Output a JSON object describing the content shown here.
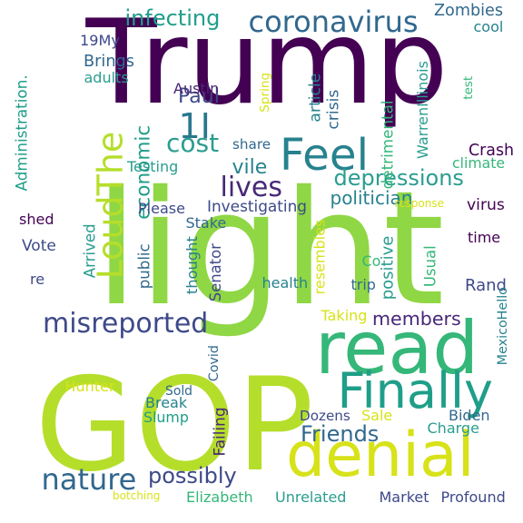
{
  "colors": {
    "background": "#ffffff",
    "deep_purple": "#440154",
    "indigo": "#482878",
    "blue": "#3e4989",
    "slate_blue": "#31688e",
    "teal_blue": "#26828e",
    "teal": "#1f9e89",
    "sea_green": "#35b779",
    "green": "#6ece58",
    "lime": "#8fd744",
    "yellow_green": "#b5de2b",
    "yellow": "#fde725"
  },
  "words": [
    {
      "id": "trump",
      "text": "Trump",
      "color": "#440154"
    },
    {
      "id": "light",
      "text": "light",
      "color": "#8fd744"
    },
    {
      "id": "gop",
      "text": "GOP",
      "color": "#b5de2b"
    },
    {
      "id": "read",
      "text": "read",
      "color": "#35b779"
    },
    {
      "id": "denial",
      "text": "denial",
      "color": "#d7e219"
    },
    {
      "id": "finally",
      "text": "Finally",
      "color": "#1f9e89"
    },
    {
      "id": "feel",
      "text": "Feel",
      "color": "#26828e"
    },
    {
      "id": "coronavirus",
      "text": "coronavirus",
      "color": "#31688e"
    },
    {
      "id": "loudthe",
      "text": "LoudThe",
      "color": "#b5de2b"
    },
    {
      "id": "1i",
      "text": "1I",
      "color": "#2a788e"
    },
    {
      "id": "misreported",
      "text": "misreported",
      "color": "#3e4989"
    },
    {
      "id": "nature",
      "text": "nature",
      "color": "#31688e"
    },
    {
      "id": "economic",
      "text": "economic",
      "color": "#1f9e89"
    },
    {
      "id": "cost",
      "text": "cost",
      "color": "#2a9d8f"
    },
    {
      "id": "lives",
      "text": "lives",
      "color": "#482878"
    },
    {
      "id": "infecting",
      "text": "infecting",
      "color": "#1f9e89"
    },
    {
      "id": "depressions",
      "text": "depressions",
      "color": "#2a9d8f"
    },
    {
      "id": "possibly",
      "text": "possibly",
      "color": "#3e4989"
    },
    {
      "id": "friends",
      "text": "Friends",
      "color": "#31688e"
    },
    {
      "id": "members",
      "text": "members",
      "color": "#482878"
    },
    {
      "id": "paul",
      "text": "Paul",
      "color": "#3e4989"
    },
    {
      "id": "vile",
      "text": "vile",
      "color": "#26828e"
    },
    {
      "id": "politician",
      "text": "politician",
      "color": "#26828e"
    },
    {
      "id": "rand",
      "text": "Rand",
      "color": "#3e4989"
    },
    {
      "id": "zombies",
      "text": "Zombies",
      "color": "#31688e"
    },
    {
      "id": "cool",
      "text": "cool",
      "color": "#26828e"
    },
    {
      "id": "19my",
      "text": "19My",
      "color": "#3e4989"
    },
    {
      "id": "brings",
      "text": "Brings",
      "color": "#31688e"
    },
    {
      "id": "adults",
      "text": "adults",
      "color": "#2a9d8f"
    },
    {
      "id": "austin",
      "text": "Austin",
      "color": "#482878"
    },
    {
      "id": "spring",
      "text": "Spring",
      "color": "#d7e219"
    },
    {
      "id": "article",
      "text": "article",
      "color": "#26828e"
    },
    {
      "id": "crisis",
      "text": "crisis",
      "color": "#31688e"
    },
    {
      "id": "warrenillinois",
      "text": "WarrenIllinois",
      "color": "#2a9d8f"
    },
    {
      "id": "detrimental",
      "text": "detrimental",
      "color": "#35b779"
    },
    {
      "id": "test",
      "text": "test",
      "color": "#35b779"
    },
    {
      "id": "crash",
      "text": "Crash",
      "color": "#440154"
    },
    {
      "id": "climate",
      "text": "climate",
      "color": "#35b779"
    },
    {
      "id": "share",
      "text": "share",
      "color": "#31688e"
    },
    {
      "id": "testing",
      "text": "Testing",
      "color": "#2a9d8f"
    },
    {
      "id": "administration",
      "text": "Administration.",
      "color": "#1f9e89"
    },
    {
      "id": "investigating",
      "text": "Investigating",
      "color": "#3e4989"
    },
    {
      "id": "please",
      "text": "Please",
      "color": "#3e4989"
    },
    {
      "id": "stake",
      "text": "Stake",
      "color": "#31688e"
    },
    {
      "id": "response",
      "text": "response",
      "color": "#d7e219"
    },
    {
      "id": "virus",
      "text": "virus",
      "color": "#440154"
    },
    {
      "id": "shed",
      "text": "shed",
      "color": "#440154"
    },
    {
      "id": "vote",
      "text": "Vote",
      "color": "#3e4989"
    },
    {
      "id": "arrived",
      "text": "Arrived",
      "color": "#2a9d8f"
    },
    {
      "id": "public",
      "text": "public",
      "color": "#31688e"
    },
    {
      "id": "thought",
      "text": "thought",
      "color": "#26828e"
    },
    {
      "id": "senator",
      "text": "Senator",
      "color": "#3e4989"
    },
    {
      "id": "resembles",
      "text": "resembles",
      "color": "#d7e219"
    },
    {
      "id": "positive",
      "text": "positive",
      "color": "#2a9d8f"
    },
    {
      "id": "usual",
      "text": "Usual",
      "color": "#35b779"
    },
    {
      "id": "time",
      "text": "time",
      "color": "#440154"
    },
    {
      "id": "co",
      "text": "Co",
      "color": "#35b779"
    },
    {
      "id": "trip",
      "text": "trip",
      "color": "#31688e"
    },
    {
      "id": "health",
      "text": "health",
      "color": "#26828e"
    },
    {
      "id": "re",
      "text": "re",
      "color": "#3e4989"
    },
    {
      "id": "taking",
      "text": "Taking",
      "color": "#d7e219"
    },
    {
      "id": "mexicohello",
      "text": "MexicoHello",
      "color": "#26828e"
    },
    {
      "id": "hunter",
      "text": "Hunter",
      "color": "#d7e219"
    },
    {
      "id": "sold",
      "text": "Sold",
      "color": "#31688e"
    },
    {
      "id": "break",
      "text": "Break",
      "color": "#26828e"
    },
    {
      "id": "slump",
      "text": "Slump",
      "color": "#1f9e89"
    },
    {
      "id": "covid",
      "text": "Covid",
      "color": "#31688e"
    },
    {
      "id": "failing",
      "text": "Failing",
      "color": "#482878"
    },
    {
      "id": "dozens",
      "text": "Dozens",
      "color": "#3e4989"
    },
    {
      "id": "sale",
      "text": "Sale",
      "color": "#d7e219"
    },
    {
      "id": "biden",
      "text": "Biden",
      "color": "#31688e"
    },
    {
      "id": "charge",
      "text": "Charge",
      "color": "#2a9d8f"
    },
    {
      "id": "elizabeth",
      "text": "Elizabeth",
      "color": "#35b779"
    },
    {
      "id": "unrelated",
      "text": "Unrelated",
      "color": "#2a9d8f"
    },
    {
      "id": "market",
      "text": "Market",
      "color": "#3e4989"
    },
    {
      "id": "profound",
      "text": "Profound",
      "color": "#3e4989"
    },
    {
      "id": "botching",
      "text": "botching",
      "color": "#d7e219"
    }
  ]
}
